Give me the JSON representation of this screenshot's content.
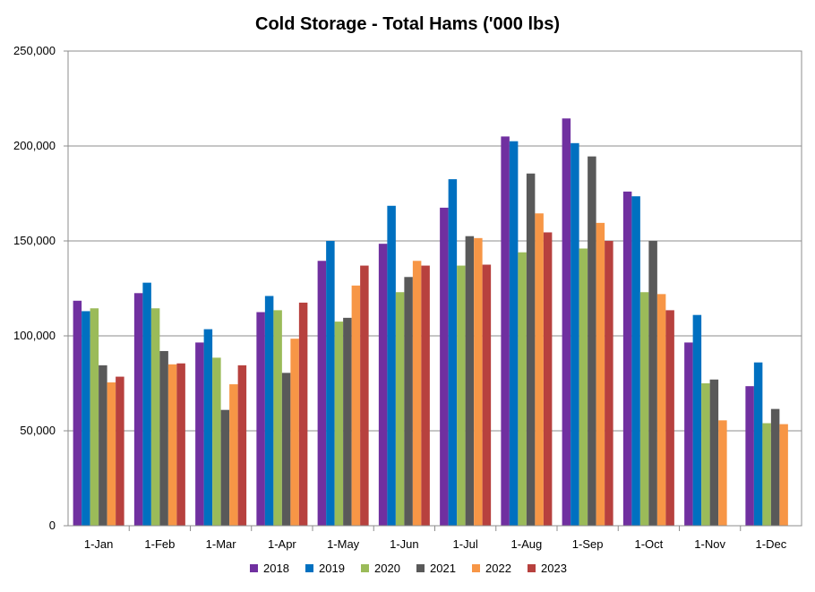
{
  "chart_data": {
    "type": "bar",
    "title": "Cold Storage - Total Hams ('000 lbs)",
    "xlabel": "",
    "ylabel": "",
    "ylim": [
      0,
      250000
    ],
    "yticks": [
      "0",
      "50,000",
      "100,000",
      "150,000",
      "200,000",
      "250,000"
    ],
    "ytick_values": [
      0,
      50000,
      100000,
      150000,
      200000,
      250000
    ],
    "grid": true,
    "legend_position": "bottom",
    "categories": [
      "1-Jan",
      "1-Feb",
      "1-Mar",
      "1-Apr",
      "1-May",
      "1-Jun",
      "1-Jul",
      "1-Aug",
      "1-Sep",
      "1-Oct",
      "1-Nov",
      "1-Dec"
    ],
    "series": [
      {
        "name": "2018",
        "color": "#7030A0",
        "values": [
          118500,
          122500,
          96500,
          112500,
          139500,
          148500,
          167500,
          205000,
          214500,
          176000,
          96500,
          73500
        ]
      },
      {
        "name": "2019",
        "color": "#0070C0",
        "values": [
          113000,
          128000,
          103500,
          121000,
          150000,
          168500,
          182500,
          202500,
          201500,
          173500,
          111000,
          86000
        ]
      },
      {
        "name": "2020",
        "color": "#9BBB59",
        "values": [
          114500,
          114500,
          88500,
          113500,
          107500,
          123000,
          137000,
          144000,
          146000,
          123000,
          75000,
          54000
        ]
      },
      {
        "name": "2021",
        "color": "#595959",
        "values": [
          84500,
          92000,
          61000,
          80500,
          109500,
          131000,
          152500,
          185500,
          194500,
          150000,
          77000,
          61500
        ]
      },
      {
        "name": "2022",
        "color": "#F79646",
        "values": [
          75500,
          85000,
          74500,
          98500,
          126500,
          139500,
          151500,
          164500,
          159500,
          122000,
          55500,
          53500
        ]
      },
      {
        "name": "2023",
        "color": "#B7413E",
        "values": [
          78500,
          85500,
          84500,
          117500,
          137000,
          137000,
          137500,
          154500,
          150000,
          113500,
          null,
          null
        ]
      }
    ]
  }
}
